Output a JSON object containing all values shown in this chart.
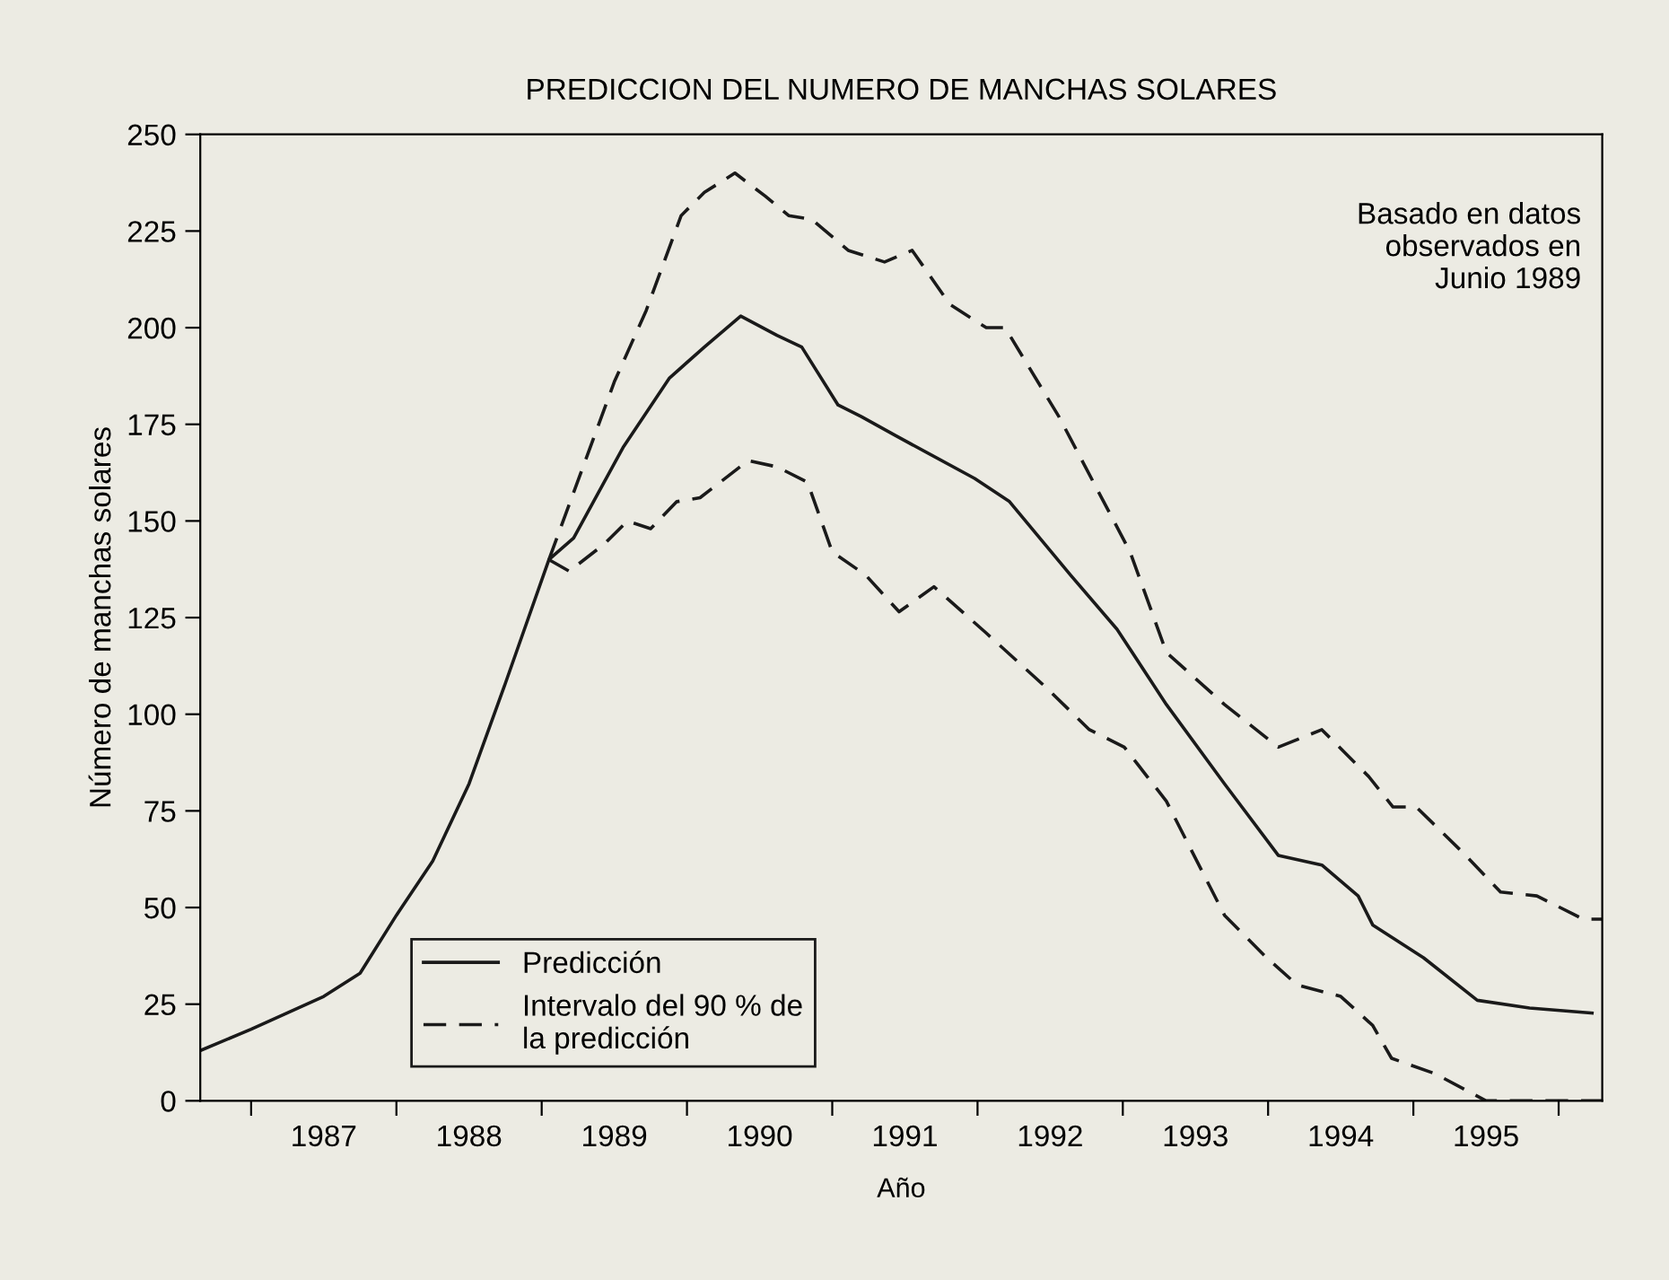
{
  "chart_data": {
    "type": "line",
    "title": "PREDICCION DEL NUMERO DE MANCHAS SOLARES",
    "xlabel": "Año",
    "ylabel": "Número de manchas solares",
    "annotations": [
      "Basado en datos\nobservados en\nJunio 1989"
    ],
    "xlim": [
      1986.65,
      1996.3
    ],
    "ylim": [
      0,
      250
    ],
    "xticks": [
      {
        "value": 1987,
        "label": null
      },
      {
        "value": 1987.5,
        "label": "1987"
      },
      {
        "value": 1988,
        "label": null
      },
      {
        "value": 1988.5,
        "label": "1988"
      },
      {
        "value": 1989,
        "label": null
      },
      {
        "value": 1989.5,
        "label": "1989"
      },
      {
        "value": 1990,
        "label": null
      },
      {
        "value": 1990.5,
        "label": "1990"
      },
      {
        "value": 1991,
        "label": null
      },
      {
        "value": 1991.5,
        "label": "1991"
      },
      {
        "value": 1992,
        "label": null
      },
      {
        "value": 1992.5,
        "label": "1992"
      },
      {
        "value": 1993,
        "label": null
      },
      {
        "value": 1993.5,
        "label": "1993"
      },
      {
        "value": 1994,
        "label": null
      },
      {
        "value": 1994.5,
        "label": "1994"
      },
      {
        "value": 1995,
        "label": null
      },
      {
        "value": 1995.5,
        "label": "1995"
      },
      {
        "value": 1996,
        "label": null
      }
    ],
    "yticks": [
      0,
      25,
      50,
      75,
      100,
      125,
      150,
      175,
      200,
      225,
      250
    ],
    "grid": false,
    "legend": "bottom left",
    "series": [
      {
        "name": "Predicción",
        "color": "#1a1a1a",
        "line_style": "solid",
        "x": [
          1986.65,
          1987.0,
          1987.5,
          1987.75,
          1988.0,
          1988.25,
          1988.5,
          1988.75,
          1989.05,
          1989.22,
          1989.56,
          1989.88,
          1990.12,
          1990.37,
          1990.62,
          1990.79,
          1991.04,
          1991.2,
          1991.44,
          1991.98,
          1992.22,
          1992.64,
          1992.96,
          1993.3,
          1993.7,
          1994.07,
          1994.37,
          1994.62,
          1994.72,
          1995.07,
          1995.44,
          1995.8,
          1996.23
        ],
        "values": [
          13,
          18.5,
          27,
          33,
          48,
          62,
          82,
          108,
          140,
          145.6,
          169,
          187,
          195,
          203,
          198,
          195,
          180,
          177,
          172,
          161,
          155,
          136,
          122,
          102.5,
          82,
          63.5,
          61,
          53,
          45.5,
          37,
          26,
          24,
          22.7
        ]
      },
      {
        "name": "Intervalo del 90 % de\nla predicción",
        "color": "#1a1a1a",
        "line_style": "dashed",
        "x": [
          1989.05,
          1989.5,
          1989.72,
          1989.96,
          1990.12,
          1990.33,
          1990.54,
          1990.7,
          1990.86,
          1991.11,
          1991.36,
          1991.55,
          1991.81,
          1992.06,
          1992.19,
          1992.56,
          1993.05,
          1993.3,
          1993.7,
          1994.07,
          1994.37,
          1994.69,
          1994.86,
          1995.02,
          1995.36,
          1995.6,
          1995.85,
          1996.17,
          1996.3
        ],
        "values": [
          140,
          186,
          204.5,
          229,
          235,
          240,
          234,
          229,
          228,
          220,
          217,
          220,
          206,
          200,
          200,
          177,
          142,
          116,
          102.5,
          91.5,
          96,
          84,
          76,
          76,
          63.5,
          54,
          53,
          47,
          47
        ]
      },
      {
        "color": "#1a1a1a",
        "line_style": "dashed",
        "x": [
          1989.05,
          1989.19,
          1989.43,
          1989.59,
          1989.75,
          1989.93,
          1990.09,
          1990.42,
          1990.62,
          1990.83,
          1991.0,
          1991.23,
          1991.46,
          1991.7,
          1992.06,
          1992.47,
          1992.77,
          1993.01,
          1993.3,
          1993.7,
          1993.99,
          1994.2,
          1994.5,
          1994.72,
          1994.85,
          1995.15,
          1995.5,
          1996.3
        ],
        "values": [
          140,
          137,
          144,
          150,
          148,
          155,
          156,
          165.6,
          164,
          160,
          142,
          136,
          126.5,
          133,
          121,
          107,
          96,
          91.5,
          77.5,
          48,
          37,
          30,
          27,
          19.5,
          11,
          7,
          0,
          0
        ]
      }
    ]
  }
}
